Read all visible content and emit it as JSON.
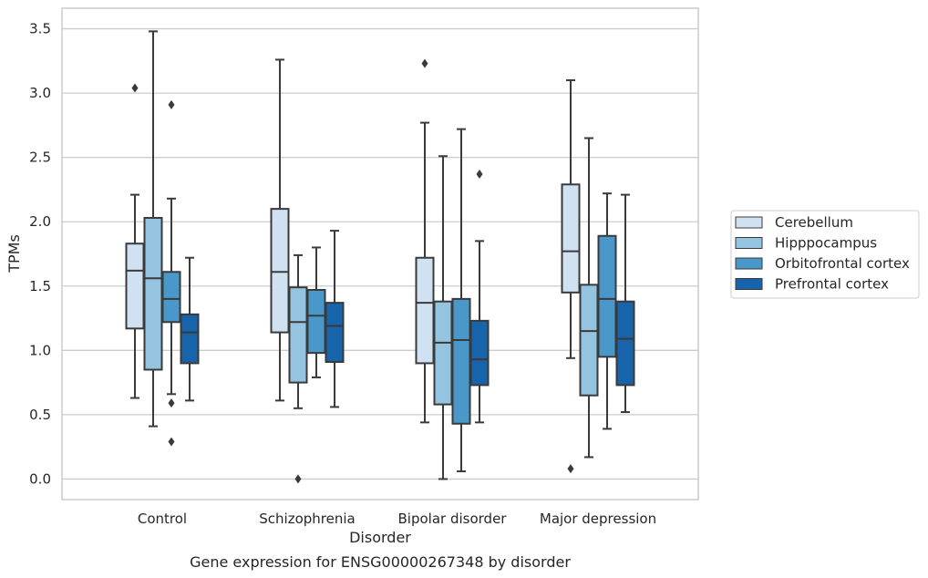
{
  "chart_data": {
    "type": "box",
    "caption": "Gene expression for ENSG00000267348 by disorder",
    "xlabel": "Disorder",
    "ylabel": "TPMs",
    "ylim": [
      -0.16,
      3.66
    ],
    "yticks": [
      "0.0",
      "0.5",
      "1.0",
      "1.5",
      "2.0",
      "2.5",
      "3.0",
      "3.5"
    ],
    "ytick_values": [
      0,
      0.5,
      1.0,
      1.5,
      2.0,
      2.5,
      3.0,
      3.5
    ],
    "grid": "horizontal",
    "legend_position": "right",
    "categories": [
      "Control",
      "Schizophrenia",
      "Bipolar disorder",
      "Major depression"
    ],
    "series": [
      {
        "name": "Cerebellum",
        "color": "#d0e1f2",
        "boxes": [
          {
            "whisker_low": 0.63,
            "q1": 1.17,
            "median": 1.62,
            "q3": 1.83,
            "whisker_high": 2.21,
            "outliers": [
              3.04
            ]
          },
          {
            "whisker_low": 0.61,
            "q1": 1.14,
            "median": 1.61,
            "q3": 2.1,
            "whisker_high": 3.26,
            "outliers": []
          },
          {
            "whisker_low": 0.44,
            "q1": 0.9,
            "median": 1.37,
            "q3": 1.72,
            "whisker_high": 2.77,
            "outliers": [
              3.23
            ]
          },
          {
            "whisker_low": 0.94,
            "q1": 1.45,
            "median": 1.77,
            "q3": 2.29,
            "whisker_high": 3.1,
            "outliers": [
              0.08
            ]
          }
        ]
      },
      {
        "name": "Hipppocampus",
        "color": "#94c4df",
        "boxes": [
          {
            "whisker_low": 0.41,
            "q1": 0.85,
            "median": 1.56,
            "q3": 2.03,
            "whisker_high": 3.48,
            "outliers": []
          },
          {
            "whisker_low": 0.55,
            "q1": 0.75,
            "median": 1.22,
            "q3": 1.49,
            "whisker_high": 1.74,
            "outliers": [
              0.0
            ]
          },
          {
            "whisker_low": 0.0,
            "q1": 0.58,
            "median": 1.06,
            "q3": 1.38,
            "whisker_high": 2.51,
            "outliers": []
          },
          {
            "whisker_low": 0.17,
            "q1": 0.65,
            "median": 1.15,
            "q3": 1.51,
            "whisker_high": 2.65,
            "outliers": []
          }
        ]
      },
      {
        "name": "Orbitofrontal cortex",
        "color": "#4a98c9",
        "boxes": [
          {
            "whisker_low": 0.66,
            "q1": 1.22,
            "median": 1.4,
            "q3": 1.61,
            "whisker_high": 2.18,
            "outliers": [
              2.91,
              0.59,
              0.29
            ]
          },
          {
            "whisker_low": 0.79,
            "q1": 0.98,
            "median": 1.27,
            "q3": 1.47,
            "whisker_high": 1.8,
            "outliers": []
          },
          {
            "whisker_low": 0.06,
            "q1": 0.43,
            "median": 1.08,
            "q3": 1.4,
            "whisker_high": 2.72,
            "outliers": []
          },
          {
            "whisker_low": 0.39,
            "q1": 0.95,
            "median": 1.4,
            "q3": 1.89,
            "whisker_high": 2.22,
            "outliers": []
          }
        ]
      },
      {
        "name": "Prefrontal cortex",
        "color": "#1764ab",
        "boxes": [
          {
            "whisker_low": 0.61,
            "q1": 0.9,
            "median": 1.14,
            "q3": 1.28,
            "whisker_high": 1.72,
            "outliers": []
          },
          {
            "whisker_low": 0.56,
            "q1": 0.91,
            "median": 1.19,
            "q3": 1.37,
            "whisker_high": 1.93,
            "outliers": []
          },
          {
            "whisker_low": 0.44,
            "q1": 0.73,
            "median": 0.93,
            "q3": 1.23,
            "whisker_high": 1.85,
            "outliers": [
              2.37
            ]
          },
          {
            "whisker_low": 0.52,
            "q1": 0.73,
            "median": 1.09,
            "q3": 1.38,
            "whisker_high": 2.21,
            "outliers": []
          }
        ]
      }
    ]
  }
}
